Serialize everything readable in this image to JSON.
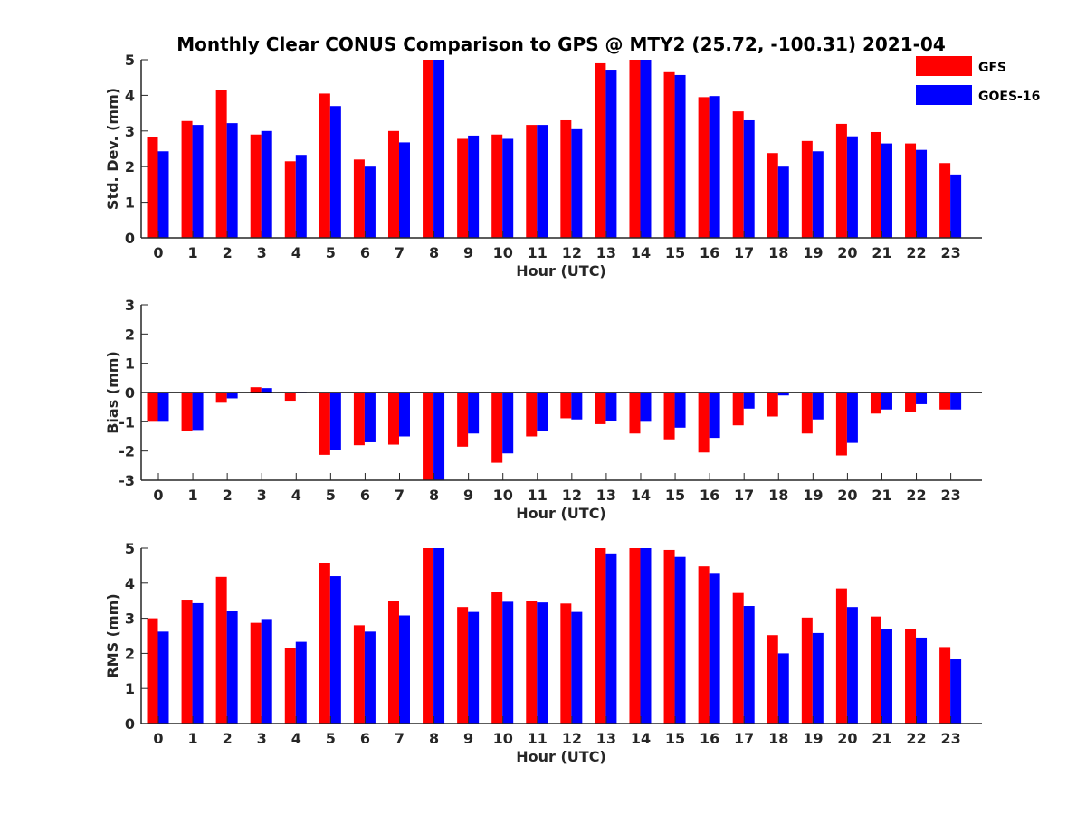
{
  "title": "Monthly Clear CONUS Comparison to GPS @ MTY2 (25.72, -100.31) 2021-04",
  "legend": {
    "placement": "top-right",
    "entries": [
      {
        "label": "GFS",
        "color": "#ff0000"
      },
      {
        "label": "GOES-16",
        "color": "#0000ff"
      }
    ]
  },
  "chart_data": [
    {
      "type": "bar",
      "ylabel": "Std. Dev. (mm)",
      "xlabel": "Hour (UTC)",
      "ylim": [
        0,
        5
      ],
      "yticks": [
        0,
        1,
        2,
        3,
        4,
        5
      ],
      "categories": [
        "0",
        "1",
        "2",
        "3",
        "4",
        "5",
        "6",
        "7",
        "8",
        "9",
        "10",
        "11",
        "12",
        "13",
        "14",
        "15",
        "16",
        "17",
        "18",
        "19",
        "20",
        "21",
        "22",
        "23"
      ],
      "series": [
        {
          "name": "GFS",
          "color": "#ff0000",
          "values": [
            2.83,
            3.28,
            4.15,
            2.9,
            2.15,
            4.05,
            2.2,
            3.0,
            5.0,
            2.78,
            2.9,
            3.17,
            3.3,
            4.9,
            5.0,
            4.65,
            3.95,
            3.55,
            2.38,
            2.72,
            3.2,
            2.97,
            2.65,
            2.1
          ]
        },
        {
          "name": "GOES-16",
          "color": "#0000ff",
          "values": [
            2.43,
            3.17,
            3.22,
            3.0,
            2.33,
            3.7,
            2.0,
            2.68,
            5.0,
            2.87,
            2.78,
            3.17,
            3.05,
            4.72,
            5.0,
            4.57,
            3.98,
            3.3,
            2.0,
            2.43,
            2.85,
            2.65,
            2.47,
            1.78
          ]
        }
      ]
    },
    {
      "type": "bar",
      "ylabel": "Bias (mm)",
      "xlabel": "Hour (UTC)",
      "ylim": [
        -3,
        3
      ],
      "yticks": [
        -3,
        -2,
        -1,
        0,
        1,
        2,
        3
      ],
      "categories": [
        "0",
        "1",
        "2",
        "3",
        "4",
        "5",
        "6",
        "7",
        "8",
        "9",
        "10",
        "11",
        "12",
        "13",
        "14",
        "15",
        "16",
        "17",
        "18",
        "19",
        "20",
        "21",
        "22",
        "23"
      ],
      "series": [
        {
          "name": "GFS",
          "color": "#ff0000",
          "values": [
            -1.0,
            -1.3,
            -0.35,
            0.18,
            -0.28,
            -2.13,
            -1.8,
            -1.78,
            -3.0,
            -1.85,
            -2.4,
            -1.5,
            -0.88,
            -1.08,
            -1.4,
            -1.6,
            -2.05,
            -1.12,
            -0.82,
            -1.4,
            -2.15,
            -0.72,
            -0.68,
            -0.58
          ]
        },
        {
          "name": "GOES-16",
          "color": "#0000ff",
          "values": [
            -1.0,
            -1.28,
            -0.2,
            0.15,
            0.02,
            -1.95,
            -1.7,
            -1.5,
            -3.0,
            -1.4,
            -2.08,
            -1.3,
            -0.92,
            -0.98,
            -1.0,
            -1.2,
            -1.55,
            -0.55,
            -0.1,
            -0.92,
            -1.72,
            -0.58,
            -0.4,
            -0.58
          ]
        }
      ]
    },
    {
      "type": "bar",
      "ylabel": "RMS (mm)",
      "xlabel": "Hour (UTC)",
      "ylim": [
        0,
        5
      ],
      "yticks": [
        0,
        1,
        2,
        3,
        4,
        5
      ],
      "categories": [
        "0",
        "1",
        "2",
        "3",
        "4",
        "5",
        "6",
        "7",
        "8",
        "9",
        "10",
        "11",
        "12",
        "13",
        "14",
        "15",
        "16",
        "17",
        "18",
        "19",
        "20",
        "21",
        "22",
        "23"
      ],
      "series": [
        {
          "name": "GFS",
          "color": "#ff0000",
          "values": [
            3.0,
            3.53,
            4.18,
            2.87,
            2.15,
            4.58,
            2.8,
            3.48,
            5.0,
            3.32,
            3.75,
            3.5,
            3.42,
            5.0,
            5.0,
            4.95,
            4.48,
            3.72,
            2.52,
            3.02,
            3.85,
            3.05,
            2.7,
            2.18
          ]
        },
        {
          "name": "GOES-16",
          "color": "#0000ff",
          "values": [
            2.62,
            3.43,
            3.22,
            2.98,
            2.33,
            4.2,
            2.62,
            3.08,
            5.0,
            3.18,
            3.47,
            3.45,
            3.18,
            4.85,
            5.0,
            4.75,
            4.27,
            3.35,
            2.0,
            2.58,
            3.32,
            2.7,
            2.45,
            1.83
          ]
        }
      ]
    }
  ]
}
